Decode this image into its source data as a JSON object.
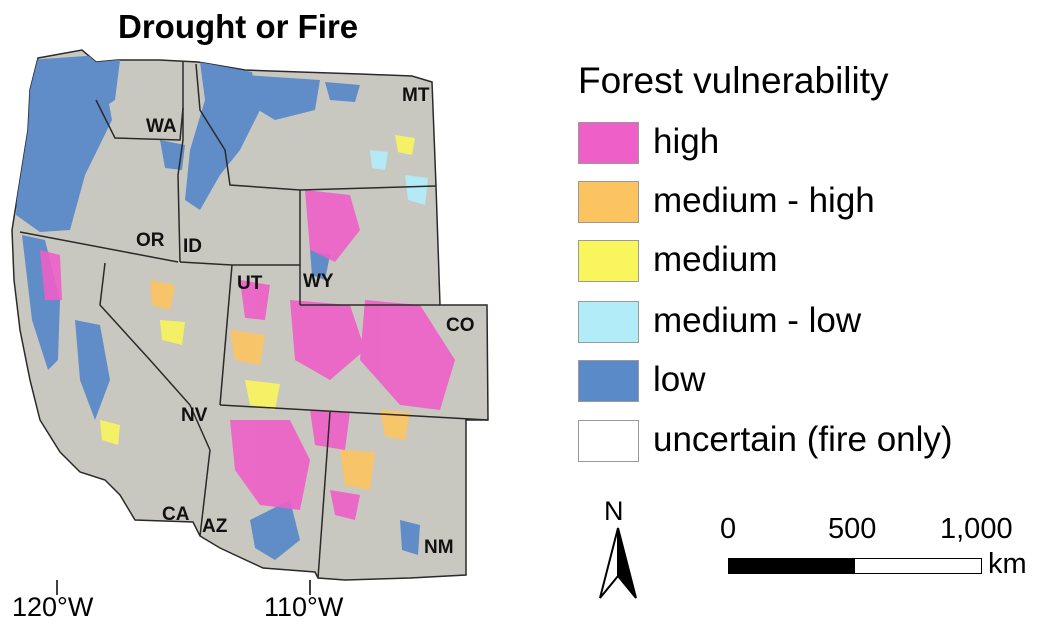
{
  "title": "Drought or Fire",
  "map": {
    "states": [
      "WA",
      "OR",
      "ID",
      "MT",
      "WY",
      "UT",
      "CO",
      "NV",
      "CA",
      "AZ",
      "NM"
    ],
    "longitude_labels": [
      "120°W",
      "110°W"
    ],
    "colors": {
      "land": "#c9c8c0",
      "state_border": "#2a2a2a",
      "high": "#ee5fc8",
      "medium_high": "#fcc460",
      "medium": "#f9f55c",
      "medium_low": "#b3ecf9",
      "low": "#5b8ac8"
    }
  },
  "legend": {
    "title": "Forest vulnerability",
    "items": [
      {
        "label": "high",
        "color": "#ee5fc8"
      },
      {
        "label": "medium - high",
        "color": "#fcc460"
      },
      {
        "label": "medium",
        "color": "#f9f55c"
      },
      {
        "label": "medium - low",
        "color": "#b3ecf9"
      },
      {
        "label": "low",
        "color": "#5b8ac8"
      },
      {
        "label": "uncertain (fire only)",
        "color": "#ffffff"
      }
    ]
  },
  "scale_bar": {
    "ticks": [
      "0",
      "500",
      "1,000"
    ],
    "unit": "km"
  },
  "north_arrow": {
    "label": "N"
  }
}
